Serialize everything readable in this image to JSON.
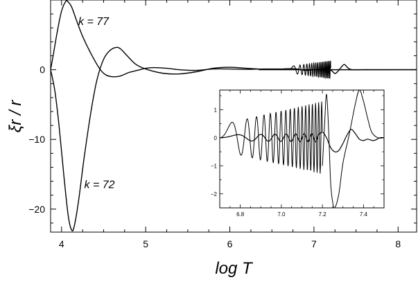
{
  "chart_data": {
    "type": "line",
    "xlabel": "log T",
    "ylabel": "ξr / r",
    "xlim": [
      3.87,
      8.22
    ],
    "ylim": [
      -23.3,
      10
    ],
    "grid": false,
    "legend": "none",
    "x_ticks": [
      {
        "value": 4,
        "label": "4"
      },
      {
        "value": 5,
        "label": "5"
      },
      {
        "value": 6,
        "label": "6"
      },
      {
        "value": 7,
        "label": "7"
      },
      {
        "value": 8,
        "label": "8"
      }
    ],
    "y_ticks": [
      {
        "value": 0,
        "label": "0"
      },
      {
        "value": -10,
        "label": "−10"
      },
      {
        "value": -20,
        "label": "−20"
      }
    ],
    "annotations": [
      {
        "text": "k = 77",
        "x": 4.2,
        "y": 6.4
      },
      {
        "text": "k = 72",
        "x": 4.27,
        "y": -17.0
      }
    ],
    "series": [
      {
        "x": [
          3.87,
          3.9,
          3.95,
          4.0,
          4.05,
          4.08,
          4.12,
          4.18,
          4.25,
          4.35,
          4.45,
          4.52,
          4.6,
          4.7,
          4.8,
          4.9,
          5.0,
          5.1,
          5.25,
          5.4,
          5.6,
          5.8,
          6.0,
          6.2,
          6.4,
          6.6,
          6.7,
          6.8,
          6.9,
          7.0,
          7.1,
          7.18,
          7.22,
          7.25,
          7.28,
          7.32,
          7.36,
          7.4,
          7.45,
          7.6,
          8.22
        ],
        "y": [
          0,
          2.0,
          5.5,
          8.4,
          9.8,
          9.7,
          9.0,
          7.0,
          4.8,
          2.3,
          0.2,
          -0.7,
          -1.0,
          -0.9,
          -0.4,
          -0.1,
          0.2,
          0.3,
          0.2,
          0.0,
          -0.1,
          0.1,
          0.1,
          0.05,
          0.1,
          0.1,
          0.15,
          0.1,
          -0.1,
          0.0,
          0.05,
          0.1,
          -0.25,
          -0.55,
          -0.3,
          0.3,
          0.75,
          0.3,
          0.0,
          0.0,
          0.0
        ]
      },
      {
        "x": [
          3.87,
          3.92,
          3.97,
          4.03,
          4.08,
          4.12,
          4.15,
          4.2,
          4.27,
          4.35,
          4.42,
          4.5,
          4.58,
          4.65,
          4.7,
          4.78,
          4.88,
          5.0,
          5.2,
          5.4,
          5.6,
          5.8,
          6.0,
          6.2,
          6.4,
          6.5,
          8.22
        ],
        "y": [
          0,
          -3.0,
          -8.0,
          -15.5,
          -21.0,
          -23.0,
          -22.5,
          -19.0,
          -12.5,
          -6.0,
          -1.5,
          1.5,
          2.8,
          3.2,
          3.0,
          2.0,
          0.8,
          0.1,
          -0.5,
          -0.6,
          -0.3,
          0.2,
          0.35,
          0.2,
          0.05,
          0.0,
          0.0
        ]
      }
    ]
  },
  "inset": {
    "xlim": [
      6.7,
      7.5
    ],
    "ylim": [
      -2.5,
      1.7
    ],
    "x_ticks": [
      {
        "value": 6.8,
        "label": "6.8"
      },
      {
        "value": 7.0,
        "label": "7.0"
      },
      {
        "value": 7.2,
        "label": "7.2"
      },
      {
        "value": 7.4,
        "label": "7.4"
      }
    ],
    "y_ticks": [
      {
        "value": 1,
        "label": "1"
      },
      {
        "value": 0,
        "label": "0"
      },
      {
        "value": -1,
        "label": "−1"
      },
      {
        "value": -2,
        "label": "−2"
      }
    ],
    "oscillation": {
      "x_start": 6.7,
      "x_end": 7.2,
      "phase_end": 110,
      "amp_start": 0.45,
      "amp_end": 1.3,
      "x_step": 0.0015
    },
    "oscillation_small": {
      "x_start": 6.7,
      "x_end": 7.18,
      "phase_end": 45,
      "amp_start": 0.1,
      "amp_end": 0.15,
      "x_step": 0.0015
    },
    "series_large_tail": {
      "x": [
        7.2,
        7.21,
        7.22,
        7.23,
        7.24,
        7.25,
        7.26,
        7.28,
        7.3,
        7.33,
        7.36,
        7.38,
        7.4,
        7.42,
        7.44,
        7.47,
        7.5
      ],
      "y": [
        -1.0,
        0.4,
        1.55,
        0.3,
        -1.6,
        -2.3,
        -2.5,
        -2.0,
        -0.9,
        0.1,
        1.2,
        1.7,
        1.3,
        0.7,
        0.2,
        0.0,
        0.0
      ]
    },
    "series_small_tail": {
      "x": [
        7.18,
        7.2,
        7.22,
        7.24,
        7.26,
        7.28,
        7.3,
        7.32,
        7.34,
        7.36,
        7.38,
        7.4,
        7.42,
        7.45,
        7.48,
        7.5
      ],
      "y": [
        0.1,
        0.2,
        0.0,
        -0.35,
        -0.5,
        -0.45,
        -0.2,
        0.1,
        0.3,
        0.15,
        -0.05,
        -0.1,
        -0.05,
        -0.1,
        0.0,
        0.0
      ]
    }
  }
}
